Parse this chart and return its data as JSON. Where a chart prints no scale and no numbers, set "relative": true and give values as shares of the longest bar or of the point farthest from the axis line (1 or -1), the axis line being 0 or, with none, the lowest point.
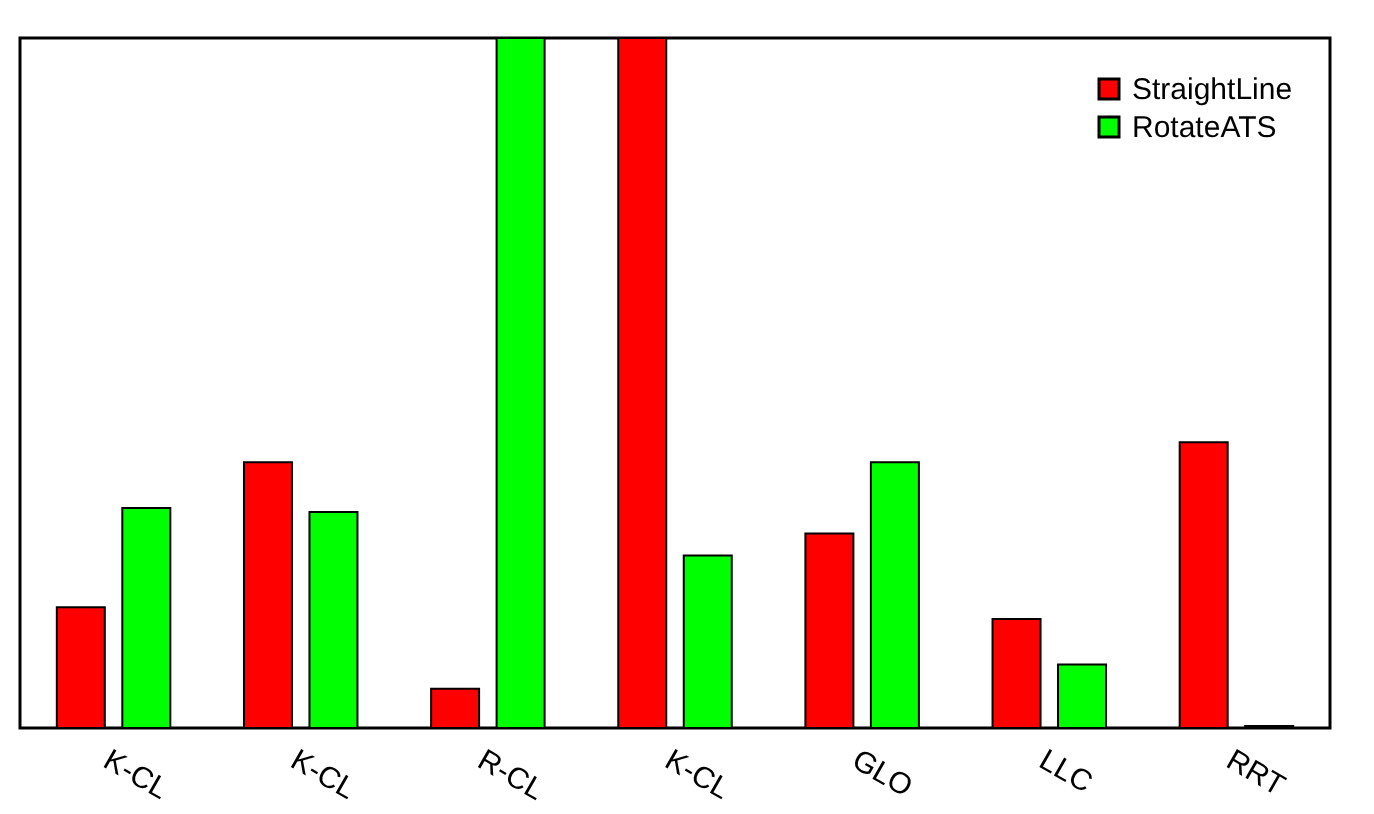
{
  "chart_data": {
    "type": "bar",
    "relative": true,
    "legend": "top right",
    "grid": false,
    "categories": [
      "K-CL",
      "K-CL",
      "R-CL",
      "K-CL",
      "GLO",
      "LLC",
      "RRT"
    ],
    "series": [
      {
        "name": "StraightLine",
        "color": "#ff0000",
        "values": [
          0.175,
          0.385,
          0.057,
          1.0,
          0.282,
          0.158,
          0.414
        ]
      },
      {
        "name": "RotateATS",
        "color": "#00ff00",
        "values": [
          0.319,
          0.313,
          1.0,
          0.25,
          0.385,
          0.092,
          0.003
        ]
      }
    ]
  }
}
